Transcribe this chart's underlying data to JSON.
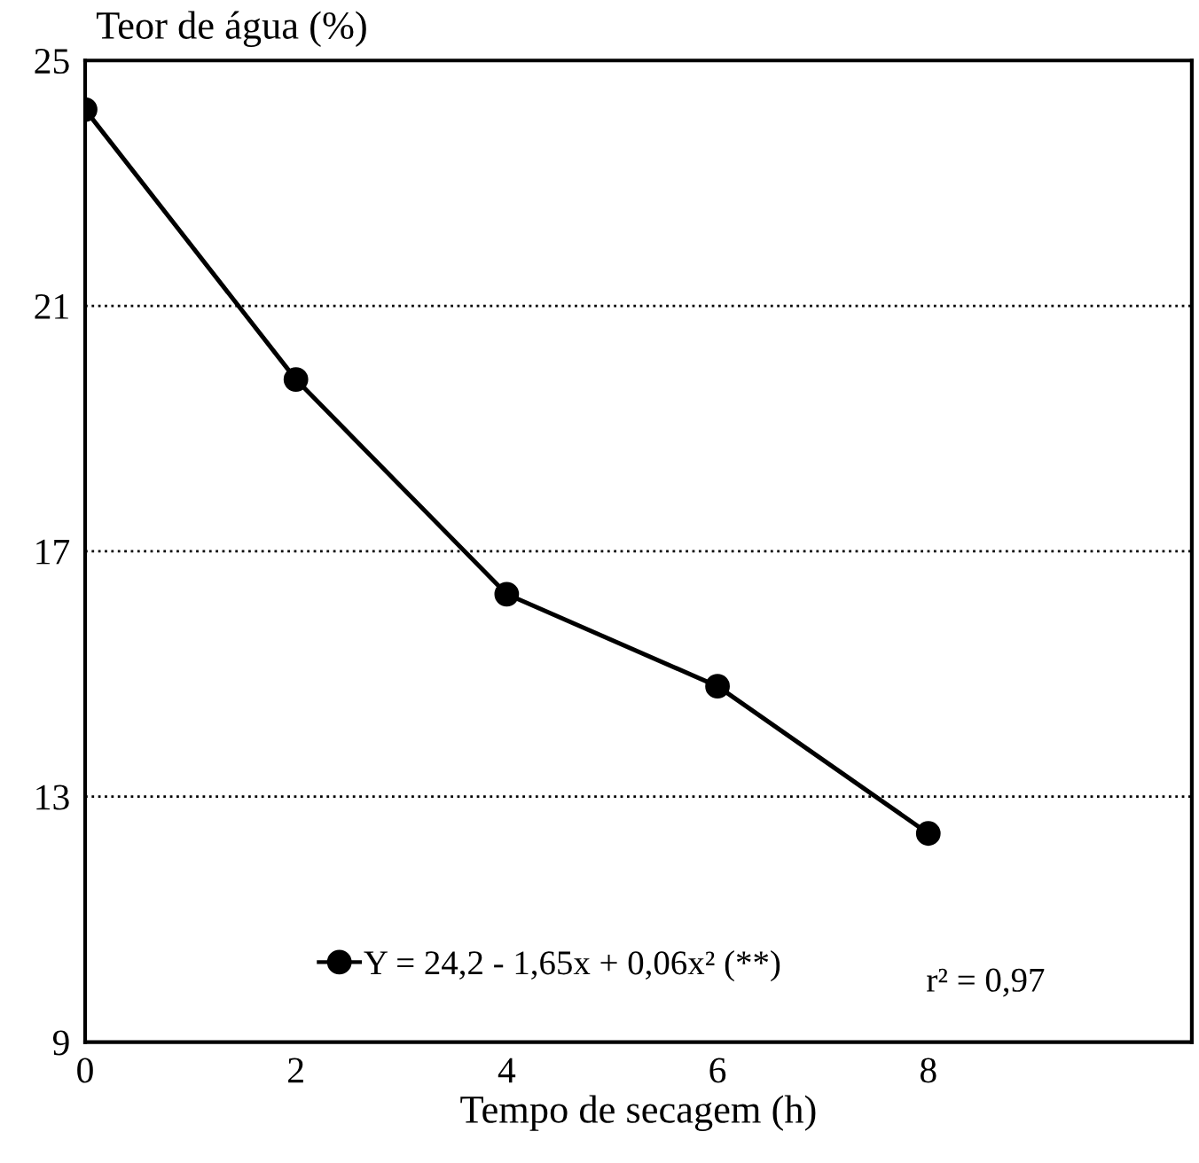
{
  "chart_data": {
    "type": "line",
    "xlabel": "Tempo de secagem (h)",
    "ylabel": "Teor de água (%)",
    "x": [
      0,
      2,
      4,
      6,
      8
    ],
    "series": [
      {
        "name": "Y = 24,2 - 1,65x + 0,06x² (**)",
        "color": "#000000",
        "values": [
          24.2,
          19.8,
          16.3,
          14.8,
          12.4
        ]
      }
    ],
    "xlim": [
      0,
      10.5
    ],
    "xticks": [
      0,
      2,
      4,
      6,
      8
    ],
    "ylim": [
      9,
      25
    ],
    "yticks": [
      9,
      13,
      17,
      21,
      25
    ],
    "grid": "y",
    "legend": "bottom",
    "marker": "circle",
    "line_style": "solid",
    "annotations": [
      "r² = 0,97"
    ]
  }
}
